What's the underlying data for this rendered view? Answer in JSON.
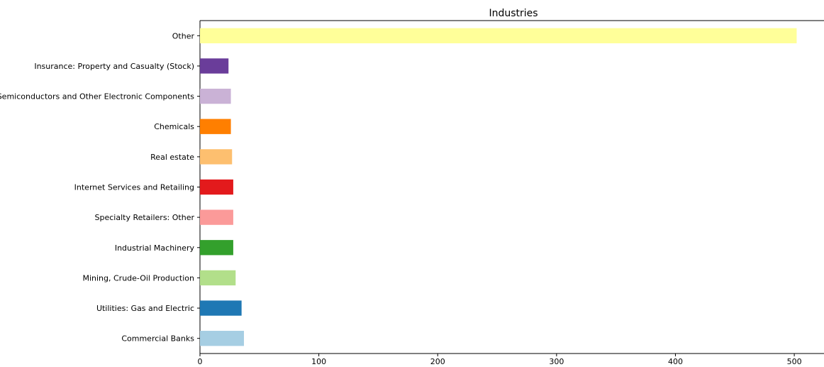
{
  "chart_data": {
    "type": "bar",
    "orientation": "horizontal",
    "title": "Industries",
    "xlabel": "",
    "ylabel": "",
    "categories": [
      "Commercial Banks",
      "Utilities: Gas and Electric",
      "Mining, Crude-Oil Production",
      "Industrial Machinery",
      "Specialty Retailers: Other",
      "Internet Services and Retailing",
      "Real estate",
      "Chemicals",
      "Semiconductors and Other Electronic Components",
      "Insurance: Property and Casualty (Stock)",
      "Other"
    ],
    "values": [
      37,
      35,
      30,
      28,
      28,
      28,
      27,
      26,
      26,
      24,
      502
    ],
    "colors": [
      "#a6cee3",
      "#1f78b4",
      "#b2df8a",
      "#33a02c",
      "#fb9a99",
      "#e31a1c",
      "#fdbf6f",
      "#ff7f00",
      "#cab2d6",
      "#6a3d9a",
      "#ffff99"
    ],
    "xlim": [
      0,
      525
    ],
    "xticks": [
      0,
      100,
      200,
      300,
      400,
      500
    ],
    "grid": false,
    "legend": "none"
  }
}
